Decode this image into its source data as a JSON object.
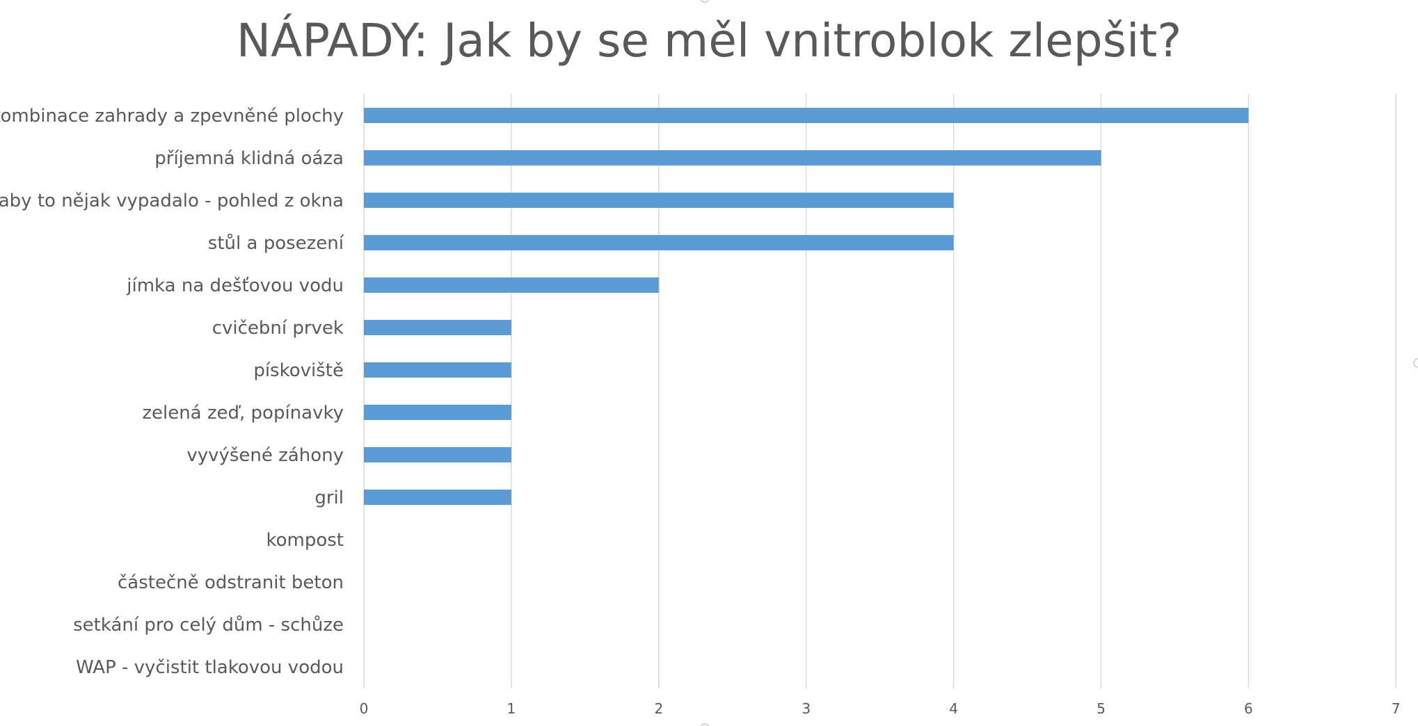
{
  "chart_data": {
    "type": "bar",
    "orientation": "horizontal",
    "title": "NÁPADY: Jak by se měl vnitroblok zlepšit?",
    "categories": [
      "kombinace zahrady a zpevněné plochy",
      "příjemná klidná oáza",
      "aby to nějak vypadalo - pohled z okna",
      "stůl a posezení",
      "jímka na dešťovou vodu",
      "cvičební prvek",
      "pískoviště",
      "zelená zeď, popínavky",
      "vyvýšené záhony",
      "gril",
      "kompost",
      "částečně odstranit beton",
      "setkání pro celý dům - schůze",
      "WAP - vyčistit tlakovou vodou"
    ],
    "values": [
      6,
      5,
      4,
      4,
      2,
      1,
      1,
      1,
      1,
      1,
      0,
      0,
      0,
      0
    ],
    "xlim": [
      0,
      7
    ],
    "xticks": [
      "0",
      "1",
      "2",
      "3",
      "4",
      "5",
      "6",
      "7"
    ],
    "xlabel": "",
    "ylabel": "",
    "grid": "vertical",
    "bar_color": "#5b9bd5"
  }
}
